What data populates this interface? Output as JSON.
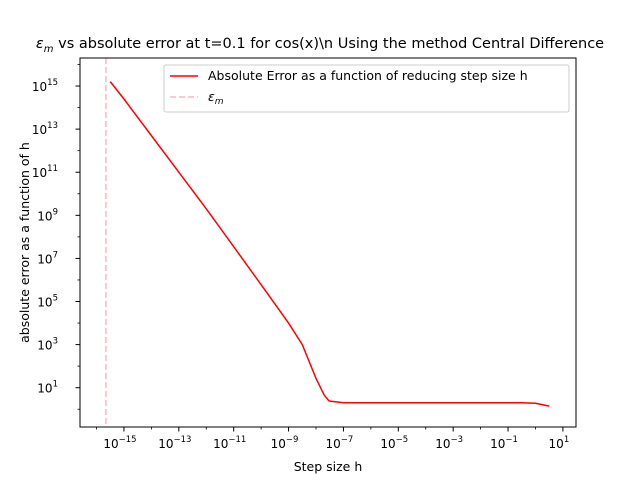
{
  "chart_data": {
    "type": "line",
    "title_prefix": "",
    "title_suffix": " vs absolute error at t=0.1 for cos(x)\\n Using the method Central Difference",
    "xlabel": "Step size h",
    "ylabel": "absolute error as a function of h",
    "xscale": "log",
    "yscale": "log",
    "xlim": [
      2.5e-17,
      30
    ],
    "ylim": [
      0.15,
      2e+16
    ],
    "grid": false,
    "legend_position": "top-right",
    "x_tick_labels": [
      "10",
      "10",
      "10",
      "10",
      "10",
      "10",
      "10",
      "10",
      "10"
    ],
    "x_tick_exponents": [
      "−15",
      "−13",
      "−11",
      "−9",
      "−7",
      "−5",
      "−3",
      "−1",
      "1"
    ],
    "x_tick_values": [
      1e-15,
      1e-13,
      1e-11,
      1e-09,
      1e-07,
      1e-05,
      0.001,
      0.1,
      10
    ],
    "y_tick_labels": [
      "10",
      "10",
      "10",
      "10",
      "10",
      "10",
      "10",
      "10"
    ],
    "y_tick_exponents": [
      "1",
      "3",
      "5",
      "7",
      "9",
      "11",
      "13",
      "15"
    ],
    "y_tick_values": [
      10,
      1000,
      100000,
      10000000,
      1000000000,
      100000000000,
      10000000000000,
      1000000000000000
    ],
    "series": [
      {
        "name": "Absolute Error as a function of reducing step size h",
        "color": "#ff0000",
        "style": "solid",
        "x": [
          3.16e-16,
          1e-15,
          1e-14,
          1e-13,
          1e-12,
          1e-11,
          1e-10,
          1e-09,
          3.16e-09,
          1e-08,
          2e-08,
          3e-08,
          1e-07,
          1e-06,
          1e-05,
          0.0001,
          0.001,
          0.01,
          0.1,
          0.3,
          1,
          3.16
        ],
        "y": [
          1600000000000000.0,
          250000000000000.0,
          5000000000000.0,
          100000000000.0,
          2000000000.0,
          35000000.0,
          600000.0,
          10000.0,
          1000.0,
          27.0,
          4.5,
          2.4,
          2.0,
          2.0,
          2.0,
          2.0,
          2.0,
          2.0,
          2.0,
          2.0,
          1.9,
          1.4
        ]
      }
    ],
    "vlines": [
      {
        "name": "ε_m",
        "legend_base": "ε",
        "legend_sub": "m",
        "x": 2.2e-16,
        "color": "#ffb6c1",
        "style": "dashed"
      }
    ]
  }
}
